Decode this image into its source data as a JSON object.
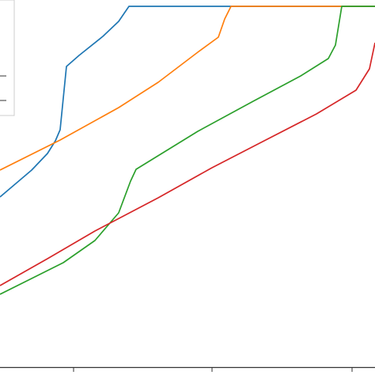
{
  "chart_data": {
    "type": "line",
    "title": "",
    "xlabel": "",
    "ylabel": "",
    "grid": false,
    "legend": {
      "placement": "top-left",
      "entries": []
    },
    "xlim": [
      0,
      474
    ],
    "ylim": [
      0,
      464
    ],
    "x_ticks": [
      93,
      268,
      445
    ],
    "series": [
      {
        "color": "#1f77b4",
        "points": [
          [
            0,
            215
          ],
          [
            20,
            232
          ],
          [
            40,
            249
          ],
          [
            60,
            270
          ],
          [
            70,
            286
          ],
          [
            76,
            300
          ],
          [
            84,
            380
          ],
          [
            100,
            394
          ],
          [
            130,
            418
          ],
          [
            150,
            437
          ],
          [
            163,
            456
          ],
          [
            474,
            456
          ]
        ]
      },
      {
        "color": "#ff7f0e",
        "points": [
          [
            0,
            249
          ],
          [
            76,
            287
          ],
          [
            150,
            328
          ],
          [
            200,
            360
          ],
          [
            250,
            398
          ],
          [
            276,
            417
          ],
          [
            284,
            440
          ],
          [
            292,
            456
          ],
          [
            474,
            456
          ]
        ]
      },
      {
        "color": "#2ca02c",
        "points": [
          [
            0,
            92
          ],
          [
            40,
            112
          ],
          [
            80,
            132
          ],
          [
            120,
            160
          ],
          [
            150,
            195
          ],
          [
            165,
            235
          ],
          [
            172,
            250
          ],
          [
            250,
            298
          ],
          [
            320,
            336
          ],
          [
            380,
            368
          ],
          [
            415,
            390
          ],
          [
            424,
            407
          ],
          [
            432,
            456
          ],
          [
            474,
            456
          ]
        ]
      },
      {
        "color": "#d62728",
        "points": [
          [
            0,
            103
          ],
          [
            60,
            137
          ],
          [
            120,
            172
          ],
          [
            200,
            214
          ],
          [
            268,
            252
          ],
          [
            330,
            284
          ],
          [
            400,
            320
          ],
          [
            450,
            350
          ],
          [
            467,
            377
          ],
          [
            474,
            410
          ]
        ]
      }
    ]
  }
}
